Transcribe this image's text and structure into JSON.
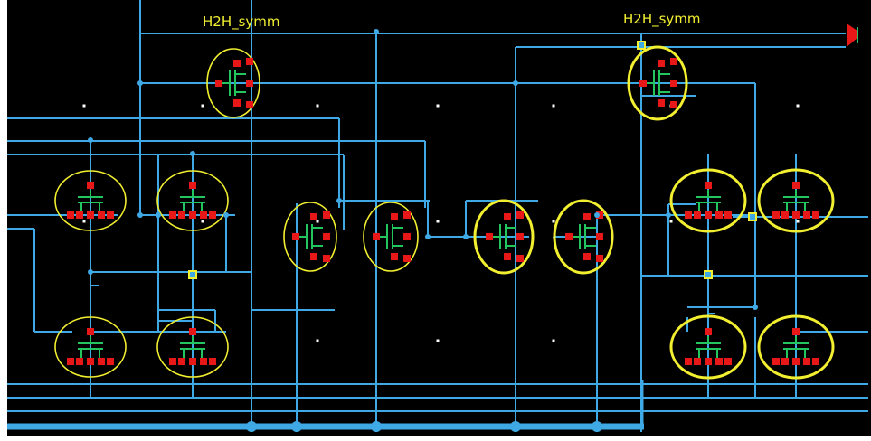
{
  "colors": {
    "background": "#000000",
    "wire": "#3fa9e6",
    "outline": "#f2ef30",
    "pin": "#e81818",
    "device": "#22c55e",
    "junction": "#f2ef30"
  },
  "labels": [
    {
      "id": "label-left",
      "text": "H2H_symm"
    },
    {
      "id": "label-right",
      "text": "H2H_symm"
    }
  ],
  "devices": [
    {
      "name": "top-transistor-left",
      "selected": false
    },
    {
      "name": "top-transistor-right",
      "selected": true
    },
    {
      "name": "left-diffpair-a",
      "selected": false
    },
    {
      "name": "left-diffpair-b",
      "selected": false
    },
    {
      "name": "left-load-a",
      "selected": false
    },
    {
      "name": "left-load-b",
      "selected": false
    },
    {
      "name": "middle-transistor-1",
      "selected": false
    },
    {
      "name": "middle-transistor-2",
      "selected": false
    },
    {
      "name": "middle-transistor-3",
      "selected": true
    },
    {
      "name": "middle-transistor-4",
      "selected": true
    },
    {
      "name": "right-diffpair-a",
      "selected": true
    },
    {
      "name": "right-diffpair-b",
      "selected": true
    },
    {
      "name": "right-load-a",
      "selected": true
    },
    {
      "name": "right-load-b",
      "selected": true
    }
  ],
  "port": {
    "name": "output-port-icon"
  }
}
